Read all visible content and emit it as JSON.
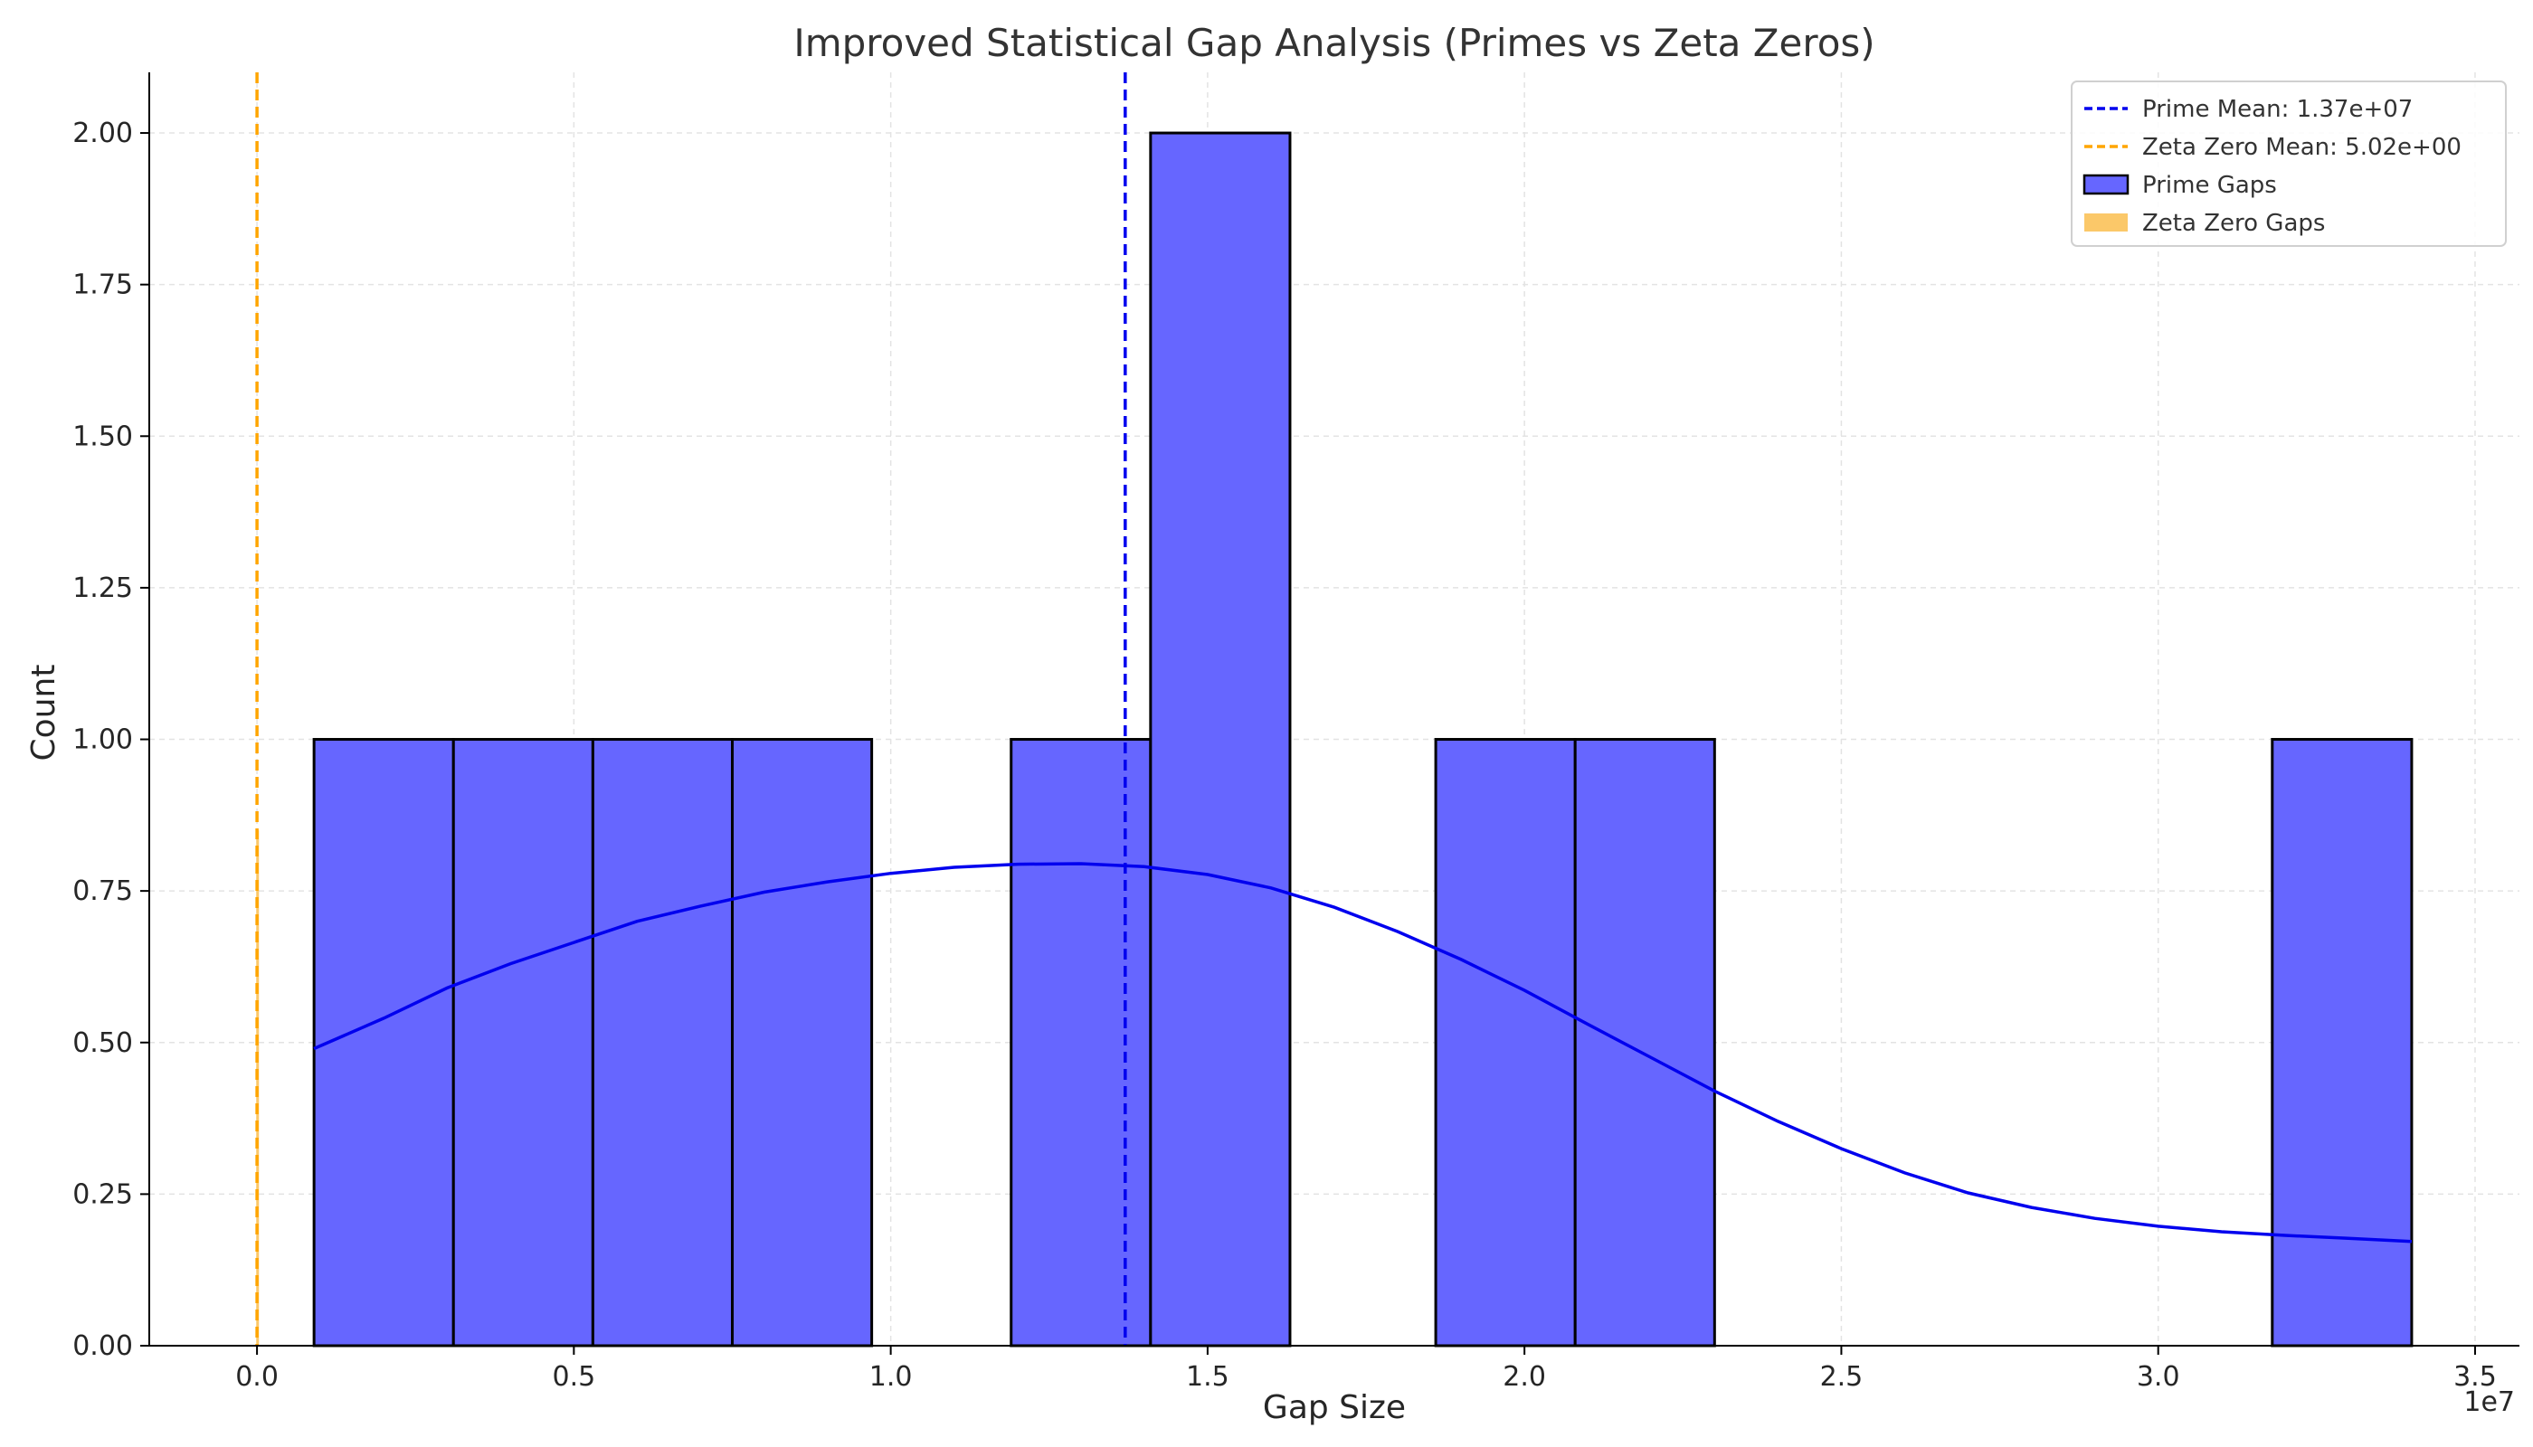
{
  "chart_data": {
    "type": "bar",
    "title": "Improved Statistical Gap Analysis (Primes vs Zeta Zeros)",
    "xlabel": "Gap Size",
    "ylabel": "Count",
    "x_offset_label": "1e7",
    "xlim": [
      -0.17,
      3.57
    ],
    "ylim": [
      0,
      2.1
    ],
    "x_ticks": [
      0.0,
      0.5,
      1.0,
      1.5,
      2.0,
      2.5,
      3.0,
      3.5
    ],
    "x_tick_labels": [
      "0.0",
      "0.5",
      "1.0",
      "1.5",
      "2.0",
      "2.5",
      "3.0",
      "3.5"
    ],
    "y_ticks": [
      0.0,
      0.25,
      0.5,
      0.75,
      1.0,
      1.25,
      1.5,
      1.75,
      2.0
    ],
    "y_tick_labels": [
      "0.00",
      "0.25",
      "0.50",
      "0.75",
      "1.00",
      "1.25",
      "1.50",
      "1.75",
      "2.00"
    ],
    "grid": true,
    "legend_position": "top-right",
    "series": [
      {
        "name": "Prime Gaps",
        "kind": "histogram",
        "color": "#6666ff",
        "edge_color": "#000000",
        "bins": [
          {
            "x0": 0.09,
            "x1": 0.31,
            "count": 1
          },
          {
            "x0": 0.31,
            "x1": 0.53,
            "count": 1
          },
          {
            "x0": 0.53,
            "x1": 0.75,
            "count": 1
          },
          {
            "x0": 0.75,
            "x1": 0.97,
            "count": 1
          },
          {
            "x0": 1.19,
            "x1": 1.41,
            "count": 1
          },
          {
            "x0": 1.41,
            "x1": 1.63,
            "count": 2
          },
          {
            "x0": 1.86,
            "x1": 2.08,
            "count": 1
          },
          {
            "x0": 2.08,
            "x1": 2.3,
            "count": 1
          },
          {
            "x0": 3.18,
            "x1": 3.4,
            "count": 1
          }
        ]
      },
      {
        "name": "Prime KDE",
        "kind": "line",
        "color": "#0000ee",
        "x": [
          0.09,
          0.2,
          0.3,
          0.4,
          0.5,
          0.6,
          0.7,
          0.8,
          0.9,
          1.0,
          1.1,
          1.2,
          1.3,
          1.4,
          1.5,
          1.6,
          1.7,
          1.8,
          1.9,
          2.0,
          2.1,
          2.2,
          2.3,
          2.4,
          2.5,
          2.6,
          2.7,
          2.8,
          2.9,
          3.0,
          3.1,
          3.2,
          3.3,
          3.4
        ],
        "y": [
          0.49,
          0.54,
          0.59,
          0.63,
          0.665,
          0.7,
          0.725,
          0.748,
          0.765,
          0.779,
          0.789,
          0.794,
          0.795,
          0.79,
          0.777,
          0.755,
          0.723,
          0.683,
          0.637,
          0.586,
          0.53,
          0.475,
          0.42,
          0.37,
          0.325,
          0.285,
          0.252,
          0.228,
          0.21,
          0.197,
          0.188,
          0.182,
          0.177,
          0.172
        ]
      },
      {
        "name": "Zeta Zero Gaps",
        "kind": "histogram",
        "color": "#fbc869",
        "bins": [
          {
            "x0": -0.0012,
            "x1": 0.0012,
            "count": 0.85
          }
        ]
      }
    ],
    "reference_lines": [
      {
        "name": "Prime Mean: 1.37e+07",
        "x": 1.37,
        "color": "#0000ee",
        "style": "dashed"
      },
      {
        "name": "Zeta Zero Mean: 5.02e+00",
        "x": 0.0,
        "color": "#ffa500",
        "style": "dashed"
      }
    ],
    "legend": [
      {
        "label": "Prime Mean: 1.37e+07",
        "type": "dashed-line",
        "color": "#0000ee"
      },
      {
        "label": "Zeta Zero Mean: 5.02e+00",
        "type": "dashed-line",
        "color": "#ffa500"
      },
      {
        "label": "Prime Gaps",
        "type": "patch",
        "color": "#6666ff",
        "edge": "#000000"
      },
      {
        "label": "Zeta Zero Gaps",
        "type": "patch",
        "color": "#fbc869",
        "edge": "none"
      }
    ]
  }
}
